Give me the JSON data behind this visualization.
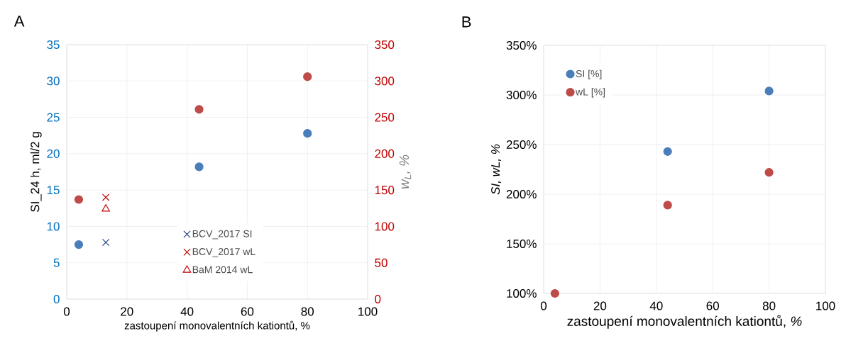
{
  "chart_data": [
    {
      "type": "scatter",
      "title": "A",
      "xlabel": "zastoupení monovalentních kationtů, %",
      "ylabel": "SI_24 h, ml/2 g",
      "y2label": "w$_{L}$, %",
      "xlim": [
        0,
        100
      ],
      "xticks": [
        0,
        20,
        40,
        60,
        80,
        100
      ],
      "ylim": [
        0,
        35
      ],
      "yticks": [
        0,
        5,
        10,
        15,
        20,
        25,
        30,
        35
      ],
      "y2lim": [
        0,
        350
      ],
      "y2ticks": [
        0,
        50,
        100,
        150,
        200,
        250,
        300,
        350
      ],
      "grid": true,
      "legend": "bottom",
      "series": [
        {
          "color": "#4a7ebb",
          "marker": "circle",
          "x": [
            4,
            44,
            80
          ],
          "values": [
            7.5,
            18.2,
            22.8
          ]
        },
        {
          "color": "#be4b48",
          "marker": "circle",
          "axis": "y2",
          "x": [
            4,
            44,
            80
          ],
          "values": [
            137,
            261,
            306
          ]
        },
        {
          "name": "BCV_2017 SI",
          "color": "#1f3f7f",
          "marker": "cross",
          "x": [
            13
          ],
          "values": [
            7.8
          ]
        },
        {
          "name": "BCV_2017 wL",
          "color": "#c00000",
          "marker": "cross",
          "axis": "y2",
          "x": [
            13
          ],
          "values": [
            140
          ]
        },
        {
          "name": "BaM 2014 wL",
          "color": "#c00000",
          "marker": "triangle",
          "axis": "y2",
          "x": [
            13
          ],
          "values": [
            124
          ]
        }
      ]
    },
    {
      "type": "scatter",
      "title": "B",
      "xlabel": "zastoupení monovalentních kationtů, *%*",
      "ylabel": "SI, wL, %",
      "xlim": [
        0,
        100
      ],
      "xticks": [
        0,
        20,
        40,
        60,
        80,
        100
      ],
      "ylim": [
        100,
        350
      ],
      "yticks": [
        {
          "value": 100,
          "label": "100%"
        },
        {
          "value": 150,
          "label": "150%"
        },
        {
          "value": 200,
          "label": "200%"
        },
        {
          "value": 250,
          "label": "250%"
        },
        {
          "value": 300,
          "label": "300%"
        },
        {
          "value": 350,
          "label": "350%"
        }
      ],
      "grid": true,
      "legend": "top left",
      "series": [
        {
          "name": "SI [%]",
          "color": "#4a7ebb",
          "marker": "circle",
          "x": [
            44,
            80
          ],
          "values": [
            243,
            304
          ]
        },
        {
          "name": "wL [%]",
          "color": "#be4b48",
          "marker": "circle",
          "x": [
            4,
            44,
            80
          ],
          "values": [
            100,
            189,
            222
          ]
        }
      ]
    }
  ]
}
